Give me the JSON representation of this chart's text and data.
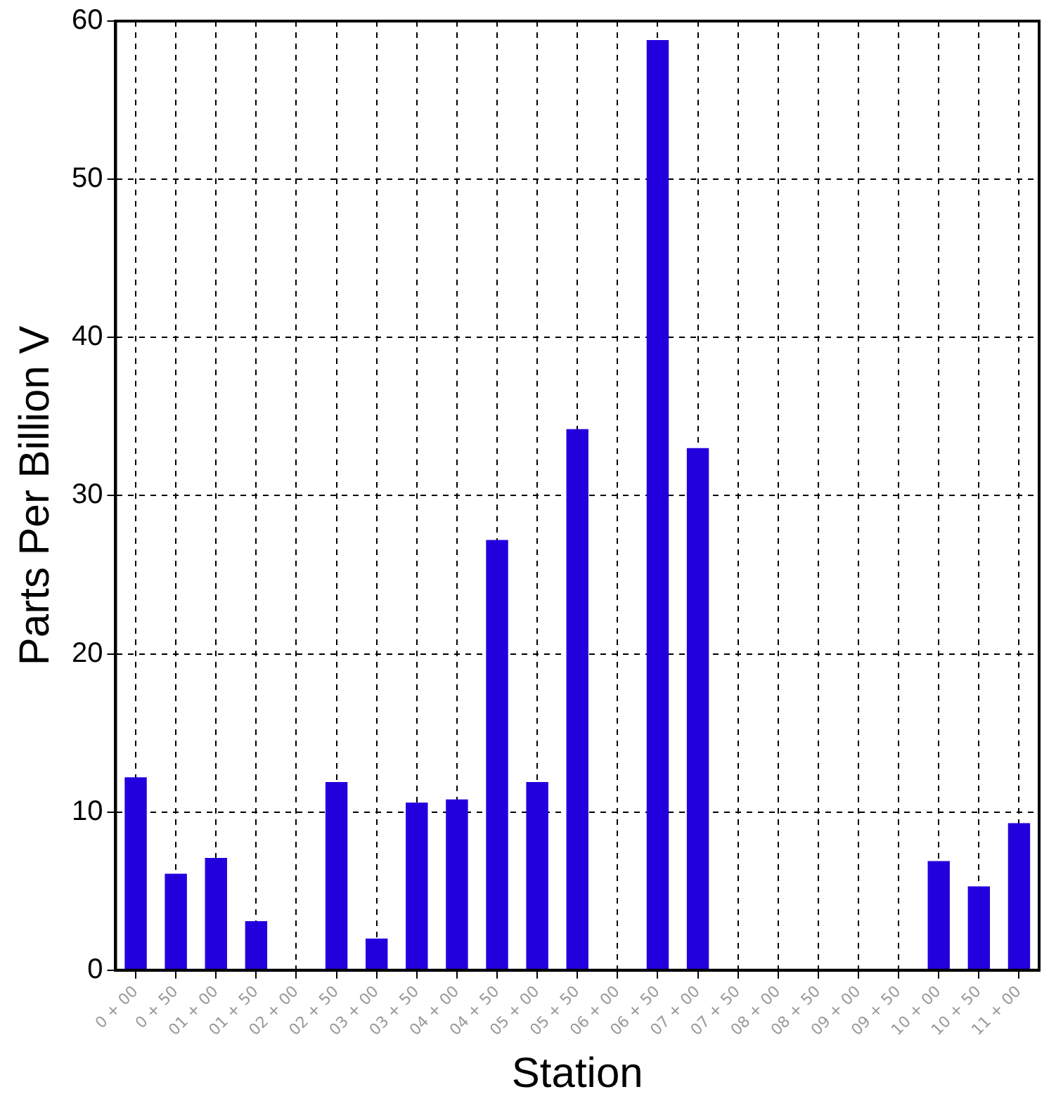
{
  "chart_data": {
    "type": "bar",
    "xlabel": "Station",
    "ylabel": "Parts Per Billion V",
    "categories": [
      "0 + 00",
      "0 + 50",
      "01 + 00",
      "01 + 50",
      "02 + 00",
      "02 + 50",
      "03 + 00",
      "03 + 50",
      "04 + 00",
      "04 + 50",
      "05 + 00",
      "05 + 50",
      "06 + 00",
      "06 + 50",
      "07 + 00",
      "07 + 50",
      "08 + 00",
      "08 + 50",
      "09 + 00",
      "09 + 50",
      "10 + 00",
      "10 + 50",
      "11 + 00"
    ],
    "values": [
      12.2,
      6.1,
      7.1,
      3.1,
      null,
      11.9,
      2,
      10.6,
      10.8,
      27.2,
      11.9,
      34.2,
      null,
      58.8,
      33,
      null,
      null,
      null,
      null,
      null,
      6.9,
      5.3,
      9.3
    ],
    "color": "#2200dd",
    "ylim": [
      0,
      60
    ],
    "yticks": [
      0,
      10,
      20,
      30,
      40,
      50,
      60
    ],
    "grid": true
  }
}
